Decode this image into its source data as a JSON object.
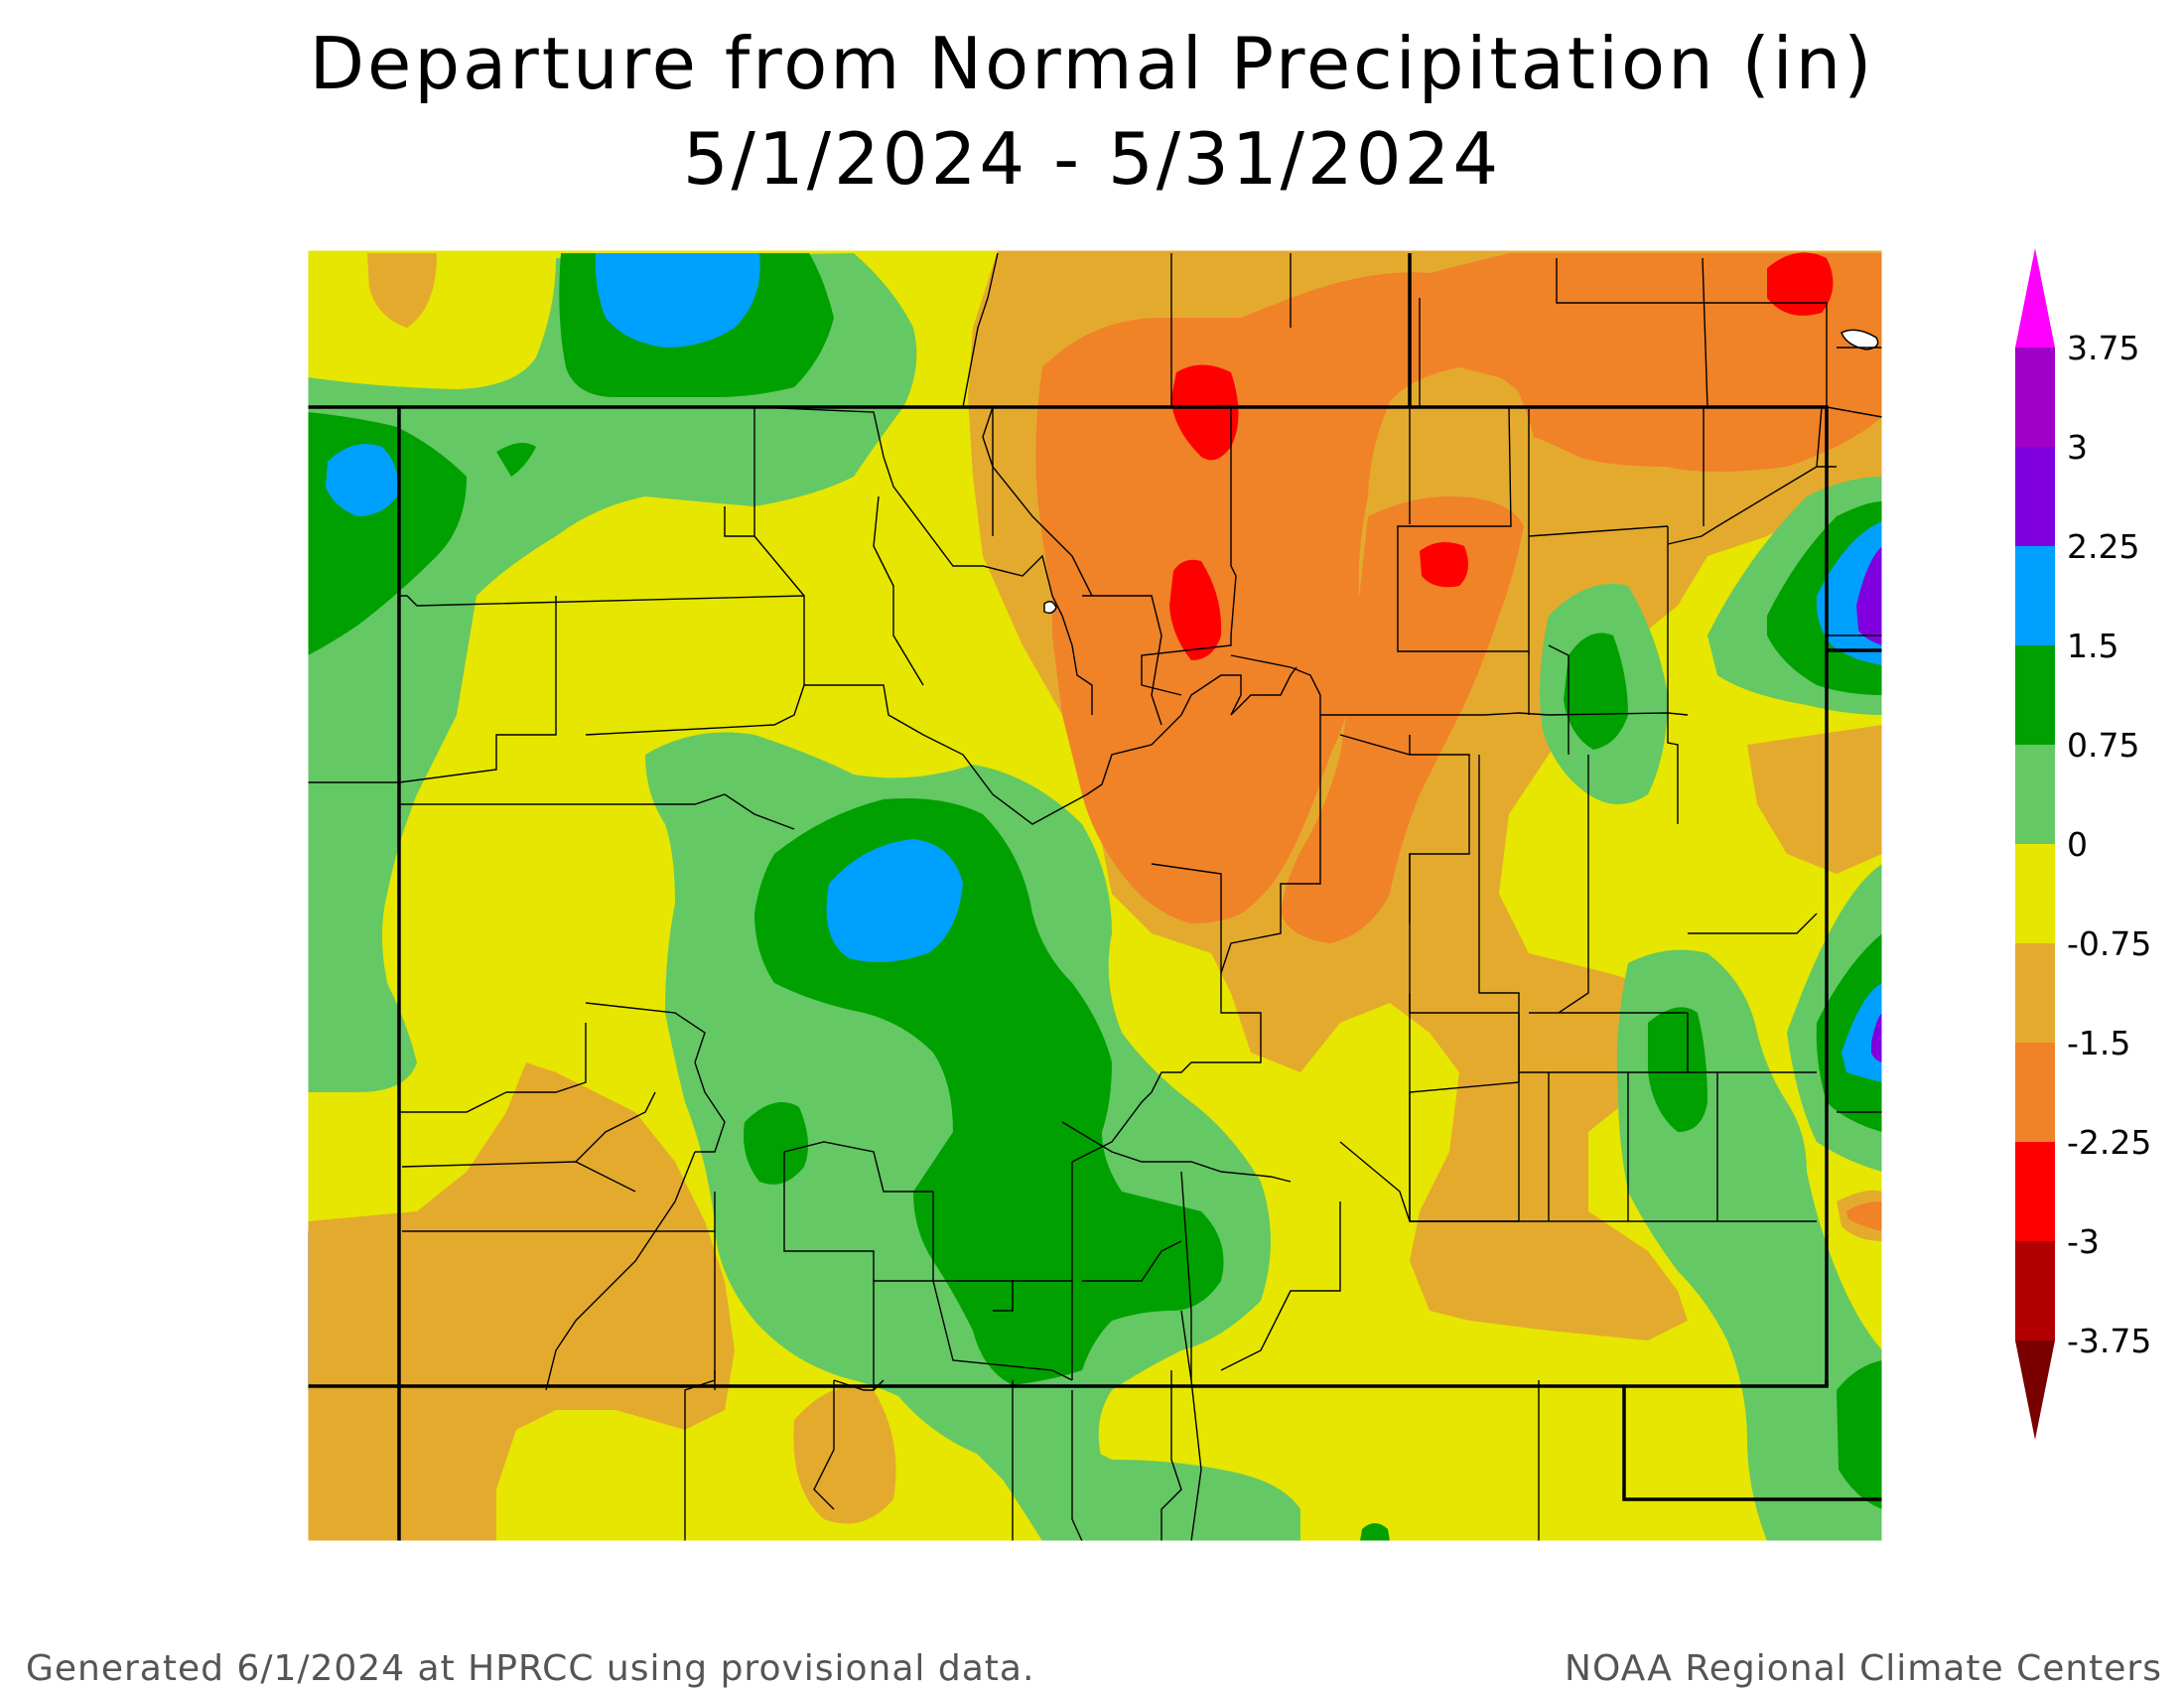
{
  "title": {
    "line1": "Departure from Normal Precipitation (in)",
    "line2": "5/1/2024 - 5/31/2024"
  },
  "footer": {
    "left": "Generated 6/1/2024 at HPRCC using provisional data.",
    "right": "NOAA Regional Climate Centers"
  },
  "legend": {
    "bins": [
      {
        "color": "#7a0000",
        "label": "-3.75"
      },
      {
        "color": "#b20000",
        "label": "-3"
      },
      {
        "color": "#ff0000",
        "label": "-2.25"
      },
      {
        "color": "#f08228",
        "label": "-1.5"
      },
      {
        "color": "#e4aa2e",
        "label": "-0.75"
      },
      {
        "color": "#e6e600",
        "label": "0"
      },
      {
        "color": "#64c864",
        "label": "0.75"
      },
      {
        "color": "#00a000",
        "label": "1.5"
      },
      {
        "color": "#00a0ff",
        "label": "2.25"
      },
      {
        "color": "#8000e0",
        "label": "3"
      },
      {
        "color": "#a000c8",
        "label": "3.75"
      },
      {
        "color": "#ff00ff",
        "label": ""
      }
    ]
  },
  "colors": {
    "ocher": "#e4aa2e",
    "orange": "#f08228",
    "red": "#ff0000",
    "yellow": "#e6e600",
    "lightgreen": "#64c864",
    "green": "#00a000",
    "blue": "#00a0ff",
    "purple": "#8000e0"
  }
}
